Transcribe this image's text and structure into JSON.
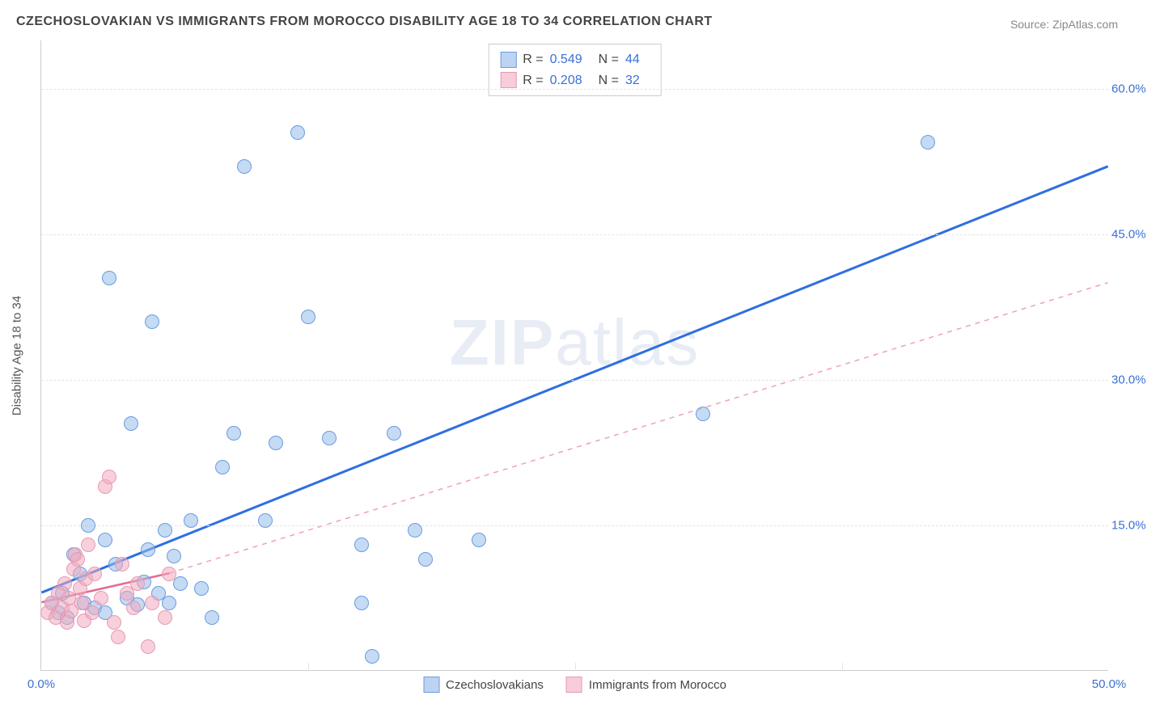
{
  "title": "CZECHOSLOVAKIAN VS IMMIGRANTS FROM MOROCCO DISABILITY AGE 18 TO 34 CORRELATION CHART",
  "source": "Source: ZipAtlas.com",
  "watermark": {
    "bold": "ZIP",
    "rest": "atlas"
  },
  "y_axis_label": "Disability Age 18 to 34",
  "chart": {
    "type": "scatter",
    "background_color": "#ffffff",
    "grid_color_h": "#e5e5e5",
    "grid_color_v": "#e5e5e5",
    "axis_color": "#cccccc",
    "xlim": [
      0,
      50
    ],
    "ylim": [
      0,
      65
    ],
    "x_ticks": [
      0,
      12.5,
      25,
      37.5,
      50
    ],
    "x_tick_labels": [
      "0.0%",
      "",
      "",
      "",
      "50.0%"
    ],
    "y_ticks": [
      15,
      30,
      45,
      60
    ],
    "y_tick_labels": [
      "15.0%",
      "30.0%",
      "45.0%",
      "60.0%"
    ],
    "marker_radius": 9,
    "marker_border_width": 1.5,
    "label_color": "#3b6fd6",
    "label_fontsize": 15
  },
  "legend_top": {
    "rows": [
      {
        "swatch_fill": "#bcd4f2",
        "swatch_border": "#6a9be0",
        "r_label": "R =",
        "r_value": "0.549",
        "n_label": "N =",
        "n_value": "44"
      },
      {
        "swatch_fill": "#f6cdd9",
        "swatch_border": "#e79ab3",
        "r_label": "R =",
        "r_value": "0.208",
        "n_label": "N =",
        "n_value": "32"
      }
    ]
  },
  "legend_bottom": {
    "items": [
      {
        "swatch_fill": "#bcd4f2",
        "swatch_border": "#6a9be0",
        "label": "Czechoslovakians"
      },
      {
        "swatch_fill": "#f6cdd9",
        "swatch_border": "#e79ab3",
        "label": "Immigrants from Morocco"
      }
    ]
  },
  "series": [
    {
      "name": "Czechoslovakians",
      "fill": "rgba(150,190,235,0.55)",
      "stroke": "#6a9be0",
      "trend": {
        "x1": 0,
        "y1": 8.0,
        "x2": 50,
        "y2": 52.0,
        "color": "#2e6fe0",
        "width": 3,
        "dash": "none"
      },
      "points": [
        [
          0.5,
          7.0
        ],
        [
          0.8,
          6.0
        ],
        [
          1.0,
          8.0
        ],
        [
          1.2,
          5.5
        ],
        [
          1.5,
          12.0
        ],
        [
          1.8,
          10.0
        ],
        [
          2.0,
          7.0
        ],
        [
          2.2,
          15.0
        ],
        [
          2.5,
          6.5
        ],
        [
          3.0,
          13.5
        ],
        [
          3.2,
          40.5
        ],
        [
          3.5,
          11.0
        ],
        [
          4.0,
          7.5
        ],
        [
          4.2,
          25.5
        ],
        [
          4.5,
          6.8
        ],
        [
          5.0,
          12.5
        ],
        [
          5.2,
          36.0
        ],
        [
          5.5,
          8.0
        ],
        [
          5.8,
          14.5
        ],
        [
          6.0,
          7.0
        ],
        [
          6.5,
          9.0
        ],
        [
          7.0,
          15.5
        ],
        [
          7.5,
          8.5
        ],
        [
          8.0,
          5.5
        ],
        [
          8.5,
          21.0
        ],
        [
          9.0,
          24.5
        ],
        [
          9.5,
          52.0
        ],
        [
          10.5,
          15.5
        ],
        [
          11.0,
          23.5
        ],
        [
          12.0,
          55.5
        ],
        [
          12.5,
          36.5
        ],
        [
          13.5,
          24.0
        ],
        [
          15.0,
          7.0
        ],
        [
          15.0,
          13.0
        ],
        [
          15.5,
          1.5
        ],
        [
          16.5,
          24.5
        ],
        [
          17.5,
          14.5
        ],
        [
          18.0,
          11.5
        ],
        [
          20.5,
          13.5
        ],
        [
          31.0,
          26.5
        ],
        [
          41.5,
          54.5
        ],
        [
          3.0,
          6.0
        ],
        [
          4.8,
          9.2
        ],
        [
          6.2,
          11.8
        ]
      ]
    },
    {
      "name": "Immigrants from Morocco",
      "fill": "rgba(240,170,190,0.55)",
      "stroke": "#e79ab3",
      "trend_solid": {
        "x1": 0,
        "y1": 7.0,
        "x2": 6,
        "y2": 10.0,
        "color": "#e56a8f",
        "width": 2.5
      },
      "trend_dash": {
        "x1": 6,
        "y1": 10.0,
        "x2": 50,
        "y2": 40.0,
        "color": "#f0a0b8",
        "width": 1.5,
        "dash": "6,6"
      },
      "points": [
        [
          0.3,
          6.0
        ],
        [
          0.5,
          7.0
        ],
        [
          0.7,
          5.5
        ],
        [
          0.8,
          8.0
        ],
        [
          1.0,
          6.5
        ],
        [
          1.1,
          9.0
        ],
        [
          1.2,
          5.0
        ],
        [
          1.3,
          7.5
        ],
        [
          1.4,
          6.2
        ],
        [
          1.5,
          10.5
        ],
        [
          1.6,
          12.0
        ],
        [
          1.7,
          11.5
        ],
        [
          1.8,
          8.5
        ],
        [
          1.9,
          7.0
        ],
        [
          2.0,
          5.2
        ],
        [
          2.1,
          9.5
        ],
        [
          2.2,
          13.0
        ],
        [
          2.4,
          6.0
        ],
        [
          2.5,
          10.0
        ],
        [
          2.8,
          7.5
        ],
        [
          3.0,
          19.0
        ],
        [
          3.2,
          20.0
        ],
        [
          3.4,
          5.0
        ],
        [
          3.6,
          3.5
        ],
        [
          3.8,
          11.0
        ],
        [
          4.0,
          8.0
        ],
        [
          4.3,
          6.5
        ],
        [
          4.5,
          9.0
        ],
        [
          5.0,
          2.5
        ],
        [
          5.2,
          7.0
        ],
        [
          5.8,
          5.5
        ],
        [
          6.0,
          10.0
        ]
      ]
    }
  ]
}
